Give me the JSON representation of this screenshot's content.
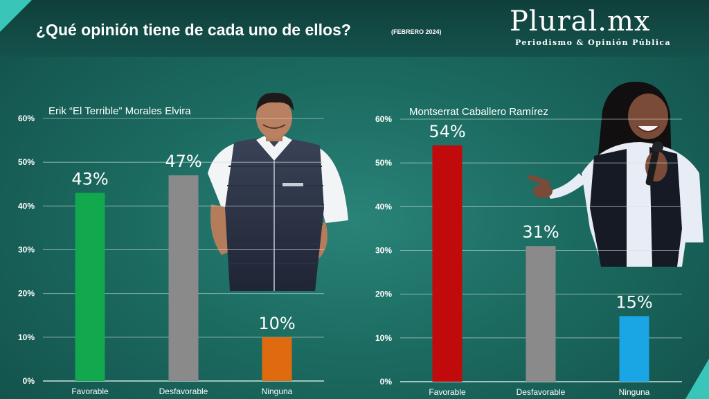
{
  "header": {
    "title": "¿Qué opinión tiene de cada uno de ellos?",
    "subtitle": "(FEBRERO 2024)",
    "logo": "Plural.mx",
    "tagline": "Periodismo & Opinión Pública"
  },
  "colors": {
    "favorable_left": "#12a84d",
    "desfavorable": "#8a8a8a",
    "ninguna_left": "#e06a10",
    "favorable_right": "#c00a0c",
    "ninguna_right": "#1aa5e4",
    "grid": "#cfe2de"
  },
  "photos": {
    "left": "man-in-navy-vest-photo",
    "right": "woman-with-microphone-photo"
  },
  "chart_data": [
    {
      "type": "bar",
      "title": "Erik “El Terrible” Morales Elvira",
      "categories": [
        "Favorable",
        "Desfavorable",
        "Ninguna"
      ],
      "values": [
        43,
        47,
        10
      ],
      "value_labels": [
        "43%",
        "47%",
        "10%"
      ],
      "bar_colors": [
        "#12a84d",
        "#8a8a8a",
        "#e06a10"
      ],
      "ylim": [
        0,
        60
      ],
      "yticks": [
        "0%",
        "10%",
        "20%",
        "30%",
        "40%",
        "50%",
        "60%"
      ],
      "grid": true
    },
    {
      "type": "bar",
      "title": "Montserrat Caballero Ramírez",
      "categories": [
        "Favorable",
        "Desfavorable",
        "Ninguna"
      ],
      "values": [
        54,
        31,
        15
      ],
      "value_labels": [
        "54%",
        "31%",
        "15%"
      ],
      "bar_colors": [
        "#c00a0c",
        "#8a8a8a",
        "#1aa5e4"
      ],
      "ylim": [
        0,
        60
      ],
      "yticks": [
        "0%",
        "10%",
        "20%",
        "30%",
        "40%",
        "50%",
        "60%"
      ],
      "grid": true
    }
  ]
}
